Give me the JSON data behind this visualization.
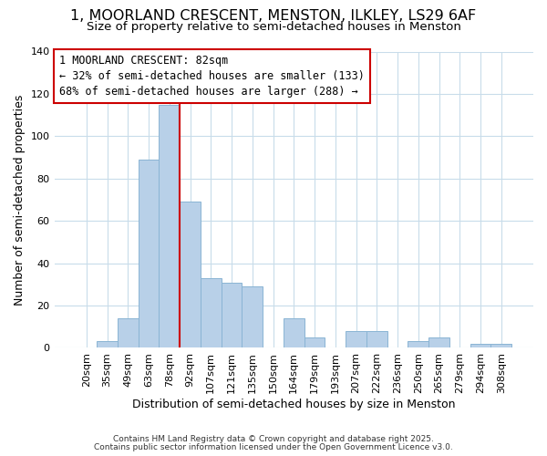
{
  "title": "1, MOORLAND CRESCENT, MENSTON, ILKLEY, LS29 6AF",
  "subtitle": "Size of property relative to semi-detached houses in Menston",
  "xlabel": "Distribution of semi-detached houses by size in Menston",
  "ylabel": "Number of semi-detached properties",
  "categories": [
    "20sqm",
    "35sqm",
    "49sqm",
    "63sqm",
    "78sqm",
    "92sqm",
    "107sqm",
    "121sqm",
    "135sqm",
    "150sqm",
    "164sqm",
    "179sqm",
    "193sqm",
    "207sqm",
    "222sqm",
    "236sqm",
    "250sqm",
    "265sqm",
    "279sqm",
    "294sqm",
    "308sqm"
  ],
  "values": [
    0,
    3,
    14,
    89,
    115,
    69,
    33,
    31,
    29,
    0,
    14,
    5,
    0,
    8,
    8,
    0,
    3,
    5,
    0,
    2,
    2
  ],
  "bar_color": "#b8d0e8",
  "bar_edge_color": "#8ab4d4",
  "vline_x_index": 4,
  "vline_color": "#cc0000",
  "annotation_line1": "1 MOORLAND CRESCENT: 82sqm",
  "annotation_line2": "← 32% of semi-detached houses are smaller (133)",
  "annotation_line3": "68% of semi-detached houses are larger (288) →",
  "annotation_box_color": "#ffffff",
  "annotation_box_edge": "#cc0000",
  "ylim": [
    0,
    140
  ],
  "yticks": [
    0,
    20,
    40,
    60,
    80,
    100,
    120,
    140
  ],
  "footer1": "Contains HM Land Registry data © Crown copyright and database right 2025.",
  "footer2": "Contains public sector information licensed under the Open Government Licence v3.0.",
  "bg_color": "#ffffff",
  "grid_color": "#c8dcea",
  "title_fontsize": 11.5,
  "subtitle_fontsize": 9.5,
  "axis_label_fontsize": 9,
  "tick_fontsize": 8,
  "annotation_fontsize": 8.5,
  "footer_fontsize": 6.5
}
